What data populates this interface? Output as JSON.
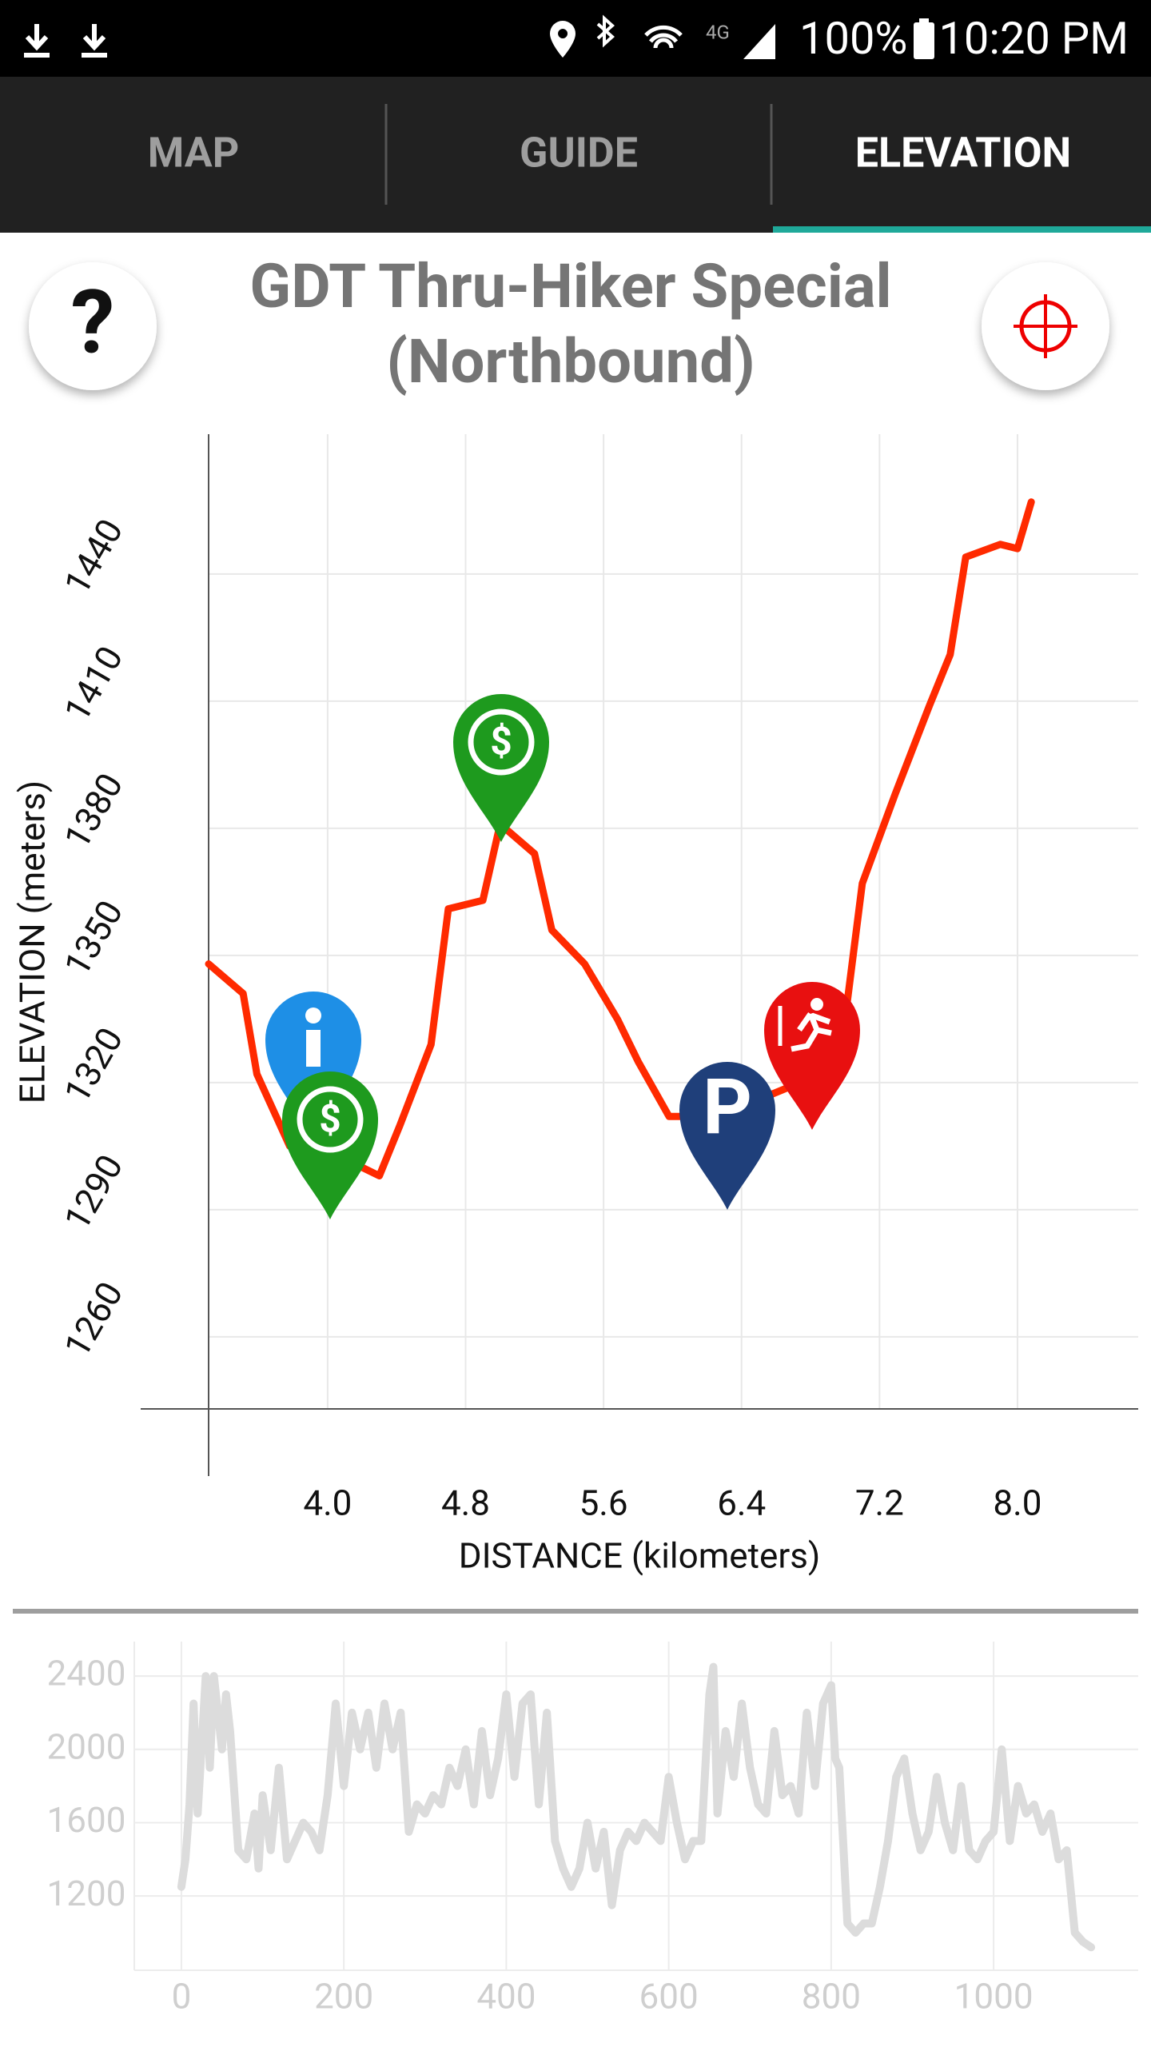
{
  "status_bar": {
    "signal": "4G",
    "battery": "100%",
    "time": "10:20 PM"
  },
  "tabs": [
    "MAP",
    "GUIDE",
    "ELEVATION"
  ],
  "title": [
    "GDT Thru-Hiker Special",
    "(Northbound)"
  ],
  "chart_data": [
    {
      "type": "line",
      "xlabel": "DISTANCE (kilometers)",
      "ylabel": "ELEVATION (meters)",
      "xlim": [
        3.31,
        8.7
      ],
      "ylim": [
        1243,
        1473
      ],
      "xticks": [
        {
          "value": 4,
          "label": "4.0"
        },
        4.8,
        5.6,
        6.4,
        7.2,
        {
          "value": 8,
          "label": "8.0"
        }
      ],
      "yticks": [
        1260,
        1290,
        1320,
        1350,
        1380,
        1410,
        1440
      ],
      "grid": true,
      "x": [
        3.31,
        3.51,
        3.59,
        3.78,
        4.0,
        4.2,
        4.3,
        4.42,
        4.6,
        4.7,
        4.9,
        5.0,
        5.2,
        5.3,
        5.49,
        5.68,
        5.8,
        5.98,
        6.07,
        6.31,
        6.56,
        6.68,
        6.82,
        7.01,
        7.1,
        7.29,
        7.49,
        7.61,
        7.7,
        7.9,
        8.0,
        8.08
      ],
      "series": [
        {
          "color": "#ff2a00",
          "values": [
            1348,
            1341,
            1322,
            1305,
            1301,
            1300,
            1298,
            1310,
            1329,
            1361,
            1363,
            1381,
            1374,
            1356,
            1348,
            1335,
            1325,
            1312,
            1312,
            1312,
            1317,
            1319,
            1326,
            1338,
            1367,
            1388,
            1409,
            1421,
            1444,
            1447,
            1446,
            1457
          ]
        }
      ]
    },
    {
      "type": "line",
      "xlim": [
        -58,
        1178
      ],
      "ylim": [
        795,
        2588
      ],
      "xticks": [
        0,
        200,
        400,
        600,
        800,
        1000
      ],
      "yticks": [
        1200,
        1600,
        2000,
        2400
      ],
      "grid": true,
      "x": [
        0,
        5,
        10,
        15,
        20,
        30,
        35,
        40,
        50,
        55,
        60,
        70,
        80,
        90,
        95,
        100,
        110,
        120,
        130,
        140,
        150,
        160,
        170,
        180,
        190,
        200,
        210,
        220,
        230,
        240,
        250,
        260,
        270,
        280,
        290,
        300,
        310,
        320,
        330,
        340,
        350,
        360,
        370,
        380,
        390,
        400,
        410,
        420,
        430,
        440,
        450,
        460,
        470,
        480,
        490,
        500,
        510,
        520,
        530,
        540,
        550,
        560,
        570,
        580,
        590,
        600,
        610,
        620,
        630,
        640,
        650,
        655,
        660,
        670,
        680,
        690,
        700,
        710,
        720,
        730,
        740,
        750,
        760,
        770,
        780,
        790,
        800,
        805,
        810,
        820,
        830,
        840,
        850,
        860,
        870,
        880,
        890,
        900,
        910,
        920,
        930,
        940,
        950,
        960,
        970,
        980,
        990,
        1000,
        1010,
        1020,
        1030,
        1040,
        1050,
        1060,
        1070,
        1080,
        1090,
        1100,
        1110,
        1120
      ],
      "series": [
        {
          "color": "#dcdcdc",
          "values": [
            1250,
            1400,
            1700,
            2250,
            1650,
            2400,
            1900,
            2400,
            2000,
            2300,
            2100,
            1450,
            1400,
            1650,
            1350,
            1750,
            1450,
            1900,
            1400,
            1500,
            1600,
            1550,
            1450,
            1750,
            2250,
            1800,
            2200,
            2000,
            2200,
            1900,
            2250,
            2000,
            2200,
            1550,
            1700,
            1650,
            1750,
            1700,
            1900,
            1800,
            2000,
            1700,
            2100,
            1750,
            1950,
            2300,
            1850,
            2250,
            2300,
            1700,
            2200,
            1500,
            1350,
            1250,
            1350,
            1600,
            1350,
            1550,
            1150,
            1450,
            1550,
            1500,
            1600,
            1550,
            1500,
            1850,
            1600,
            1400,
            1500,
            1500,
            2300,
            2450,
            1650,
            2100,
            1850,
            2250,
            1900,
            1700,
            1650,
            2100,
            1750,
            1800,
            1650,
            2200,
            1800,
            2250,
            2350,
            1950,
            1900,
            1050,
            1000,
            1050,
            1050,
            1250,
            1500,
            1850,
            1950,
            1650,
            1450,
            1550,
            1850,
            1600,
            1450,
            1800,
            1450,
            1400,
            1500,
            1550,
            2000,
            1500,
            1800,
            1650,
            1700,
            1550,
            1650,
            1400,
            1450,
            1000,
            950,
            920
          ]
        }
      ]
    }
  ]
}
